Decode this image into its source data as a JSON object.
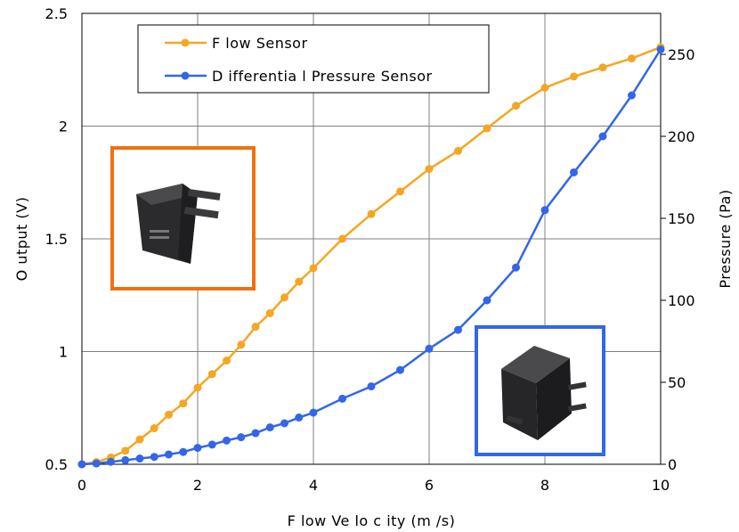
{
  "chart_data": {
    "type": "line",
    "xlabel": "F low  Ve lo c ity  (m /s)",
    "ylabel": "O utput (V)",
    "y2label": "Pressure (Pa)",
    "xlim": [
      0,
      10
    ],
    "ylim": [
      0.5,
      2.5
    ],
    "y2lim": [
      0,
      275
    ],
    "x_ticks": [
      "0",
      "2",
      "4",
      "6",
      "8",
      "10"
    ],
    "y_ticks": [
      "0.5",
      "1",
      "1.5",
      "2",
      "2.5"
    ],
    "y2_ticks": [
      "0",
      "50",
      "100",
      "150",
      "200",
      "250"
    ],
    "grid": true,
    "legend_position": "top-left",
    "series": [
      {
        "name": "F low Sensor",
        "axis": "left",
        "color": "#f5a623",
        "x": [
          0,
          0.25,
          0.5,
          0.75,
          1.0,
          1.25,
          1.5,
          1.75,
          2.0,
          2.25,
          2.5,
          2.75,
          3.0,
          3.25,
          3.5,
          3.75,
          4.0,
          4.5,
          5.0,
          5.5,
          6.0,
          6.5,
          7.0,
          7.5,
          8.0,
          8.5,
          9.0,
          9.5,
          10.0
        ],
        "values": [
          0.5,
          0.51,
          0.53,
          0.56,
          0.61,
          0.66,
          0.72,
          0.77,
          0.84,
          0.9,
          0.96,
          1.03,
          1.11,
          1.17,
          1.24,
          1.31,
          1.37,
          1.5,
          1.61,
          1.71,
          1.81,
          1.89,
          1.99,
          2.09,
          2.17,
          2.22,
          2.26,
          2.3,
          2.35
        ]
      },
      {
        "name": "D ifferentia l Pressure Sensor",
        "axis": "right",
        "color": "#3366e8",
        "x": [
          0,
          0.25,
          0.5,
          0.75,
          1.0,
          1.25,
          1.5,
          1.75,
          2.0,
          2.25,
          2.5,
          2.75,
          3.0,
          3.25,
          3.5,
          3.75,
          4.0,
          4.5,
          5.0,
          5.5,
          6.0,
          6.5,
          7.0,
          7.5,
          8.0,
          8.5,
          9.0,
          9.5,
          10.0
        ],
        "values": [
          0,
          0.5,
          1.5,
          2.5,
          3.5,
          4.5,
          6,
          7.5,
          10,
          12,
          14.5,
          16.5,
          19,
          22.5,
          25,
          28.5,
          31.5,
          40,
          47.5,
          57.5,
          70.5,
          82,
          100,
          120,
          155,
          178,
          200,
          225,
          253
        ]
      }
    ]
  },
  "colors": {
    "flow_box": "#f07010",
    "dp_box": "#3366e8"
  }
}
